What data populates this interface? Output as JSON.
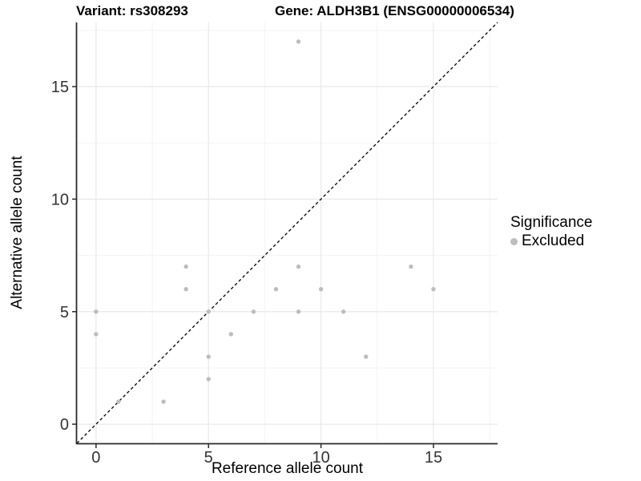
{
  "chart_data": {
    "type": "scatter",
    "titles": {
      "variant": "Variant: rs308293",
      "gene": "Gene: ALDH3B1 (ENSG00000006534)"
    },
    "xlabel": "Reference allele count",
    "ylabel": "Alternative allele count",
    "xlim": [
      -0.85,
      17.85
    ],
    "ylim": [
      -0.85,
      17.85
    ],
    "x_ticks": [
      0,
      5,
      10,
      15
    ],
    "y_ticks": [
      0,
      5,
      10,
      15
    ],
    "minor_ticks": [
      2.5,
      7.5,
      12.5,
      17.5
    ],
    "grid": true,
    "identity_line": {
      "slope": 1,
      "intercept": 0,
      "style": "dashed"
    },
    "series": [
      {
        "name": "Excluded",
        "color": "#bdbdbd",
        "points": [
          [
            0,
            4
          ],
          [
            0,
            5
          ],
          [
            1,
            1
          ],
          [
            3,
            1
          ],
          [
            4,
            6
          ],
          [
            4,
            7
          ],
          [
            5,
            2
          ],
          [
            5,
            3
          ],
          [
            5,
            5
          ],
          [
            6,
            4
          ],
          [
            7,
            5
          ],
          [
            8,
            6
          ],
          [
            9,
            5
          ],
          [
            9,
            7
          ],
          [
            9,
            17
          ],
          [
            10,
            6
          ],
          [
            11,
            5
          ],
          [
            12,
            3
          ],
          [
            14,
            7
          ],
          [
            15,
            6
          ]
        ]
      }
    ],
    "legend": {
      "title": "Significance",
      "position": "right",
      "entries": [
        {
          "label": "Excluded",
          "color": "#bdbdbd"
        }
      ]
    }
  },
  "colors": {
    "background": "#ffffff",
    "point": "#bdbdbd",
    "grid_major": "#e8e8e8",
    "grid_minor": "#f3f3f3",
    "axis_line": "#2b2b2b",
    "tick_label": "#333333",
    "diagonal_line": "#000000"
  }
}
